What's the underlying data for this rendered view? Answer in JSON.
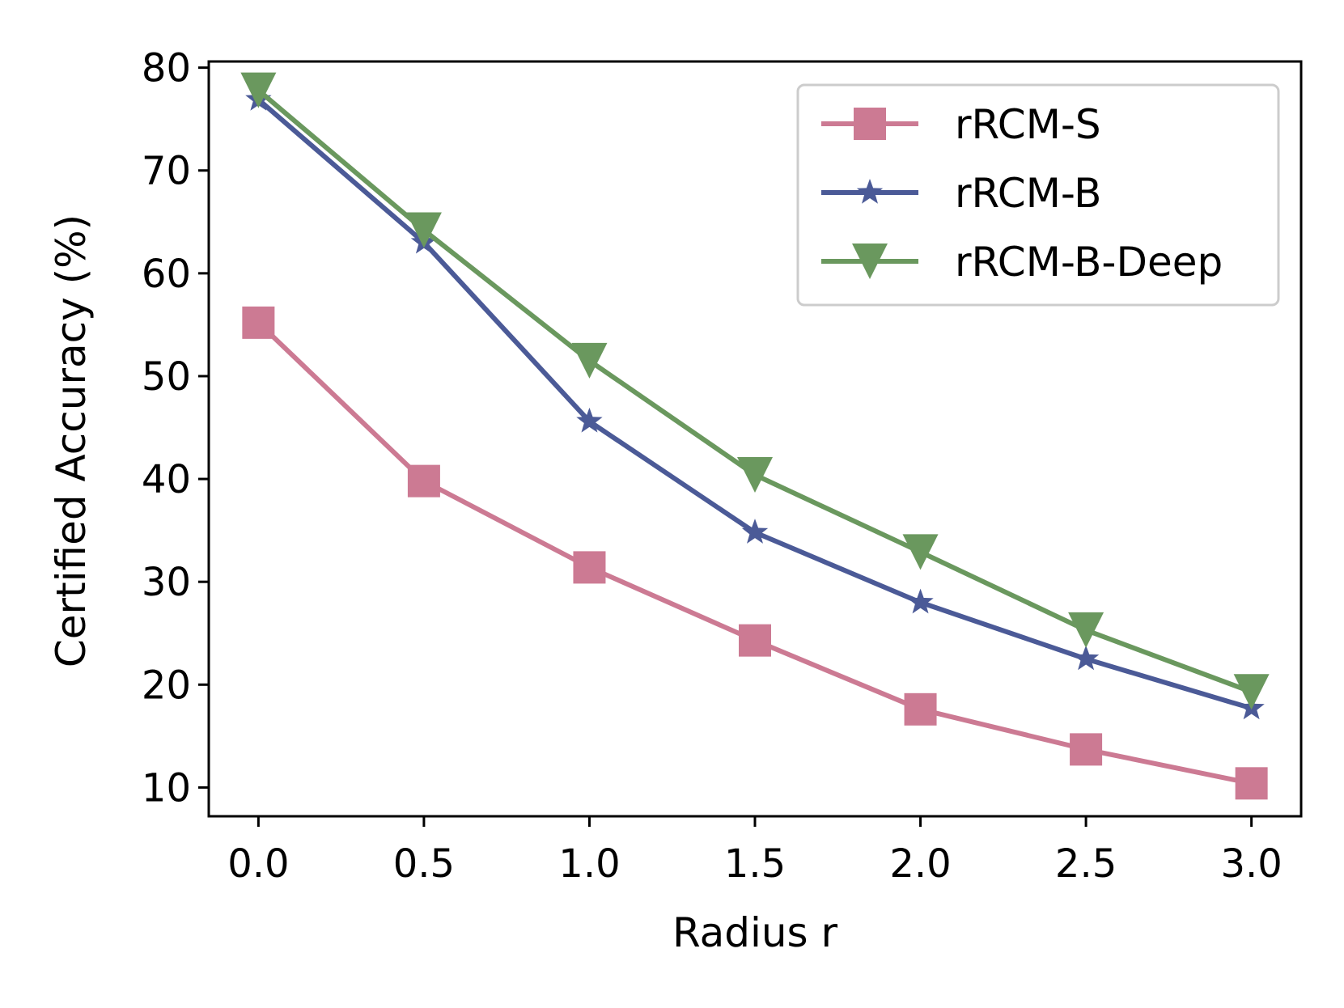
{
  "chart_data": {
    "type": "line",
    "title": "",
    "xlabel": "Radius r",
    "ylabel": "Certified Accuracy (%)",
    "x": [
      0.0,
      0.5,
      1.0,
      1.5,
      2.0,
      2.5,
      3.0
    ],
    "x_tick_labels": [
      "0.0",
      "0.5",
      "1.0",
      "1.5",
      "2.0",
      "2.5",
      "3.0"
    ],
    "y_ticks": [
      10,
      20,
      30,
      40,
      50,
      60,
      70,
      80
    ],
    "y_tick_labels": [
      "10",
      "20",
      "30",
      "40",
      "50",
      "60",
      "70",
      "80"
    ],
    "xlim": [
      -0.15,
      3.15
    ],
    "ylim": [
      7.2,
      80.6
    ],
    "grid": false,
    "legend_position": "top-right",
    "series": [
      {
        "name": "rRCM-S",
        "color": "#cc7a93",
        "marker": "square",
        "values": [
          55.2,
          39.8,
          31.4,
          24.3,
          17.6,
          13.7,
          10.4
        ]
      },
      {
        "name": "rRCM-B",
        "color": "#4b5a97",
        "marker": "star",
        "values": [
          76.9,
          63.0,
          45.6,
          34.8,
          28.0,
          22.5,
          17.7
        ]
      },
      {
        "name": "rRCM-B-Deep",
        "color": "#6a985e",
        "marker": "triangle-down",
        "values": [
          77.8,
          64.2,
          51.5,
          40.4,
          32.9,
          25.3,
          19.3
        ]
      }
    ]
  }
}
